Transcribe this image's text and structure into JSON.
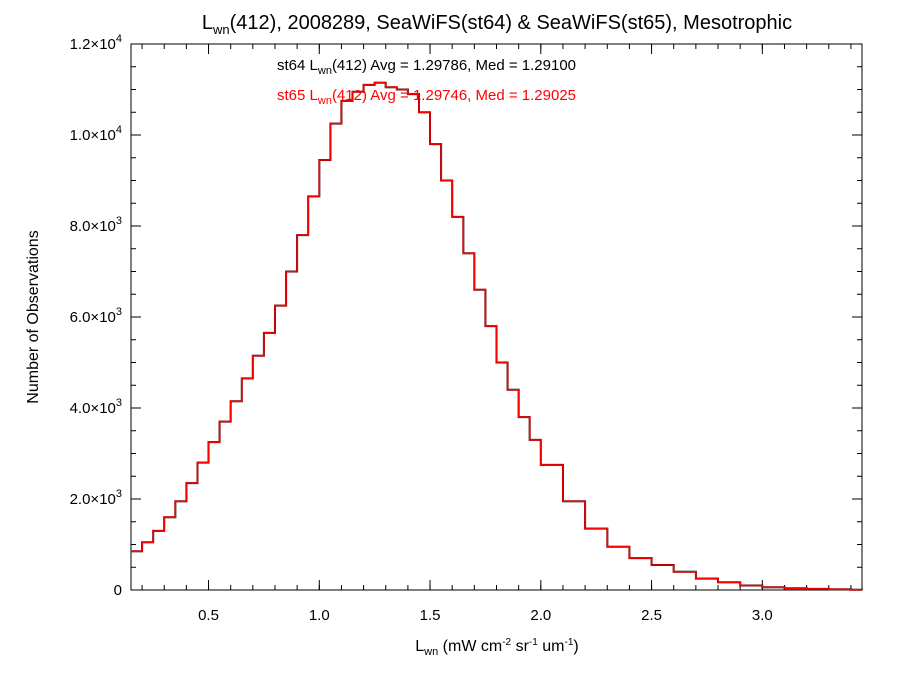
{
  "chart_data": {
    "type": "line",
    "title": {
      "pre": "L",
      "sub": "wn",
      "post": "(412), 2008289, SeaWiFS(st64) & SeaWiFS(st65), Mesotrophic"
    },
    "xlabel": {
      "pre": "L",
      "sub": "wn",
      "unit_open": " (mW cm",
      "sup1": "-2",
      "mid1": " sr",
      "sup2": "-1",
      "mid2": " um",
      "sup3": "-1",
      "unit_close": ")"
    },
    "ylabel": "Number of Observations",
    "xlim": [
      0.15,
      3.45
    ],
    "ylim": [
      0,
      12000
    ],
    "x_ticks": [
      0.5,
      1.0,
      1.5,
      2.0,
      2.5,
      3.0
    ],
    "x_tick_labels": [
      "0.5",
      "1.0",
      "1.5",
      "2.0",
      "2.5",
      "3.0"
    ],
    "y_ticks": [
      {
        "value": 0,
        "mant": "0",
        "exp": ""
      },
      {
        "value": 2000,
        "mant": "2.0×10",
        "exp": "3"
      },
      {
        "value": 4000,
        "mant": "4.0×10",
        "exp": "3"
      },
      {
        "value": 6000,
        "mant": "6.0×10",
        "exp": "3"
      },
      {
        "value": 8000,
        "mant": "8.0×10",
        "exp": "3"
      },
      {
        "value": 10000,
        "mant": "1.0×10",
        "exp": "4"
      },
      {
        "value": 12000,
        "mant": "1.2×10",
        "exp": "4"
      }
    ],
    "series": [
      {
        "name": "st64",
        "color": "#000000",
        "legend": {
          "pre": "st64 L",
          "sub": "wn",
          "post": "(412) Avg = 1.29786, Med = 1.29100"
        },
        "x": [
          0.15,
          0.2,
          0.25,
          0.3,
          0.35,
          0.4,
          0.45,
          0.5,
          0.55,
          0.6,
          0.65,
          0.7,
          0.75,
          0.8,
          0.85,
          0.9,
          0.95,
          1.0,
          1.05,
          1.1,
          1.15,
          1.2,
          1.25,
          1.3,
          1.35,
          1.4,
          1.45,
          1.5,
          1.55,
          1.6,
          1.65,
          1.7,
          1.75,
          1.8,
          1.85,
          1.9,
          1.95,
          2.0,
          2.1,
          2.2,
          2.3,
          2.4,
          2.5,
          2.6,
          2.7,
          2.8,
          2.9,
          3.0,
          3.1,
          3.2,
          3.3,
          3.4,
          3.45
        ],
        "y": [
          850,
          1050,
          1300,
          1600,
          1950,
          2350,
          2800,
          3250,
          3700,
          4150,
          4650,
          5150,
          5650,
          6250,
          7000,
          7800,
          8650,
          9450,
          10250,
          10750,
          10950,
          11100,
          11150,
          11050,
          11000,
          10900,
          10500,
          9800,
          9000,
          8200,
          7400,
          6600,
          5800,
          5000,
          4400,
          3800,
          3300,
          2750,
          1950,
          1350,
          950,
          700,
          550,
          400,
          250,
          170,
          100,
          60,
          40,
          25,
          15,
          5,
          0
        ]
      },
      {
        "name": "st65",
        "color": "#ff0000",
        "legend": {
          "pre": "st65 L",
          "sub": "wn",
          "post": "(412) Avg = 1.29746, Med = 1.29025"
        },
        "x": [
          0.15,
          0.2,
          0.25,
          0.3,
          0.35,
          0.4,
          0.45,
          0.5,
          0.55,
          0.6,
          0.65,
          0.7,
          0.75,
          0.8,
          0.85,
          0.9,
          0.95,
          1.0,
          1.05,
          1.1,
          1.15,
          1.2,
          1.25,
          1.3,
          1.35,
          1.4,
          1.45,
          1.5,
          1.55,
          1.6,
          1.65,
          1.7,
          1.75,
          1.8,
          1.85,
          1.9,
          1.95,
          2.0,
          2.1,
          2.2,
          2.3,
          2.4,
          2.5,
          2.6,
          2.7,
          2.8,
          2.9,
          3.0,
          3.1,
          3.2,
          3.3,
          3.4,
          3.45
        ],
        "y": [
          850,
          1050,
          1300,
          1600,
          1950,
          2350,
          2800,
          3250,
          3700,
          4150,
          4650,
          5150,
          5650,
          6250,
          7000,
          7800,
          8650,
          9450,
          10250,
          10750,
          10950,
          11100,
          11150,
          11050,
          11000,
          10900,
          10500,
          9800,
          9000,
          8200,
          7400,
          6600,
          5800,
          5000,
          4400,
          3800,
          3300,
          2750,
          1950,
          1350,
          950,
          700,
          550,
          400,
          250,
          170,
          100,
          60,
          40,
          25,
          15,
          5,
          0
        ]
      }
    ],
    "grid": false,
    "legend_position": "top-center"
  }
}
